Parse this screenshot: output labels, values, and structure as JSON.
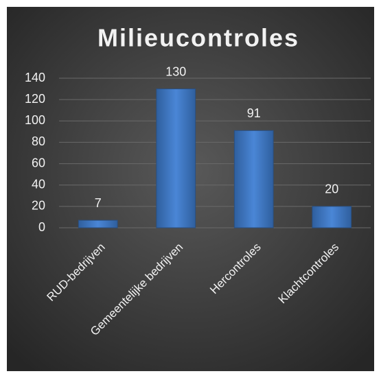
{
  "chart_data": {
    "type": "bar",
    "title": "Milieucontroles",
    "categories": [
      "RUD-bedrijven",
      "Gemeentelijke bedrijven",
      "Hercontroles",
      "Klachtcontroles"
    ],
    "values": [
      7,
      130,
      91,
      20
    ],
    "color": "#4a86d6",
    "ylim": [
      0,
      140
    ],
    "yticks": [
      0,
      20,
      40,
      60,
      80,
      100,
      120,
      140
    ],
    "grid": true
  }
}
